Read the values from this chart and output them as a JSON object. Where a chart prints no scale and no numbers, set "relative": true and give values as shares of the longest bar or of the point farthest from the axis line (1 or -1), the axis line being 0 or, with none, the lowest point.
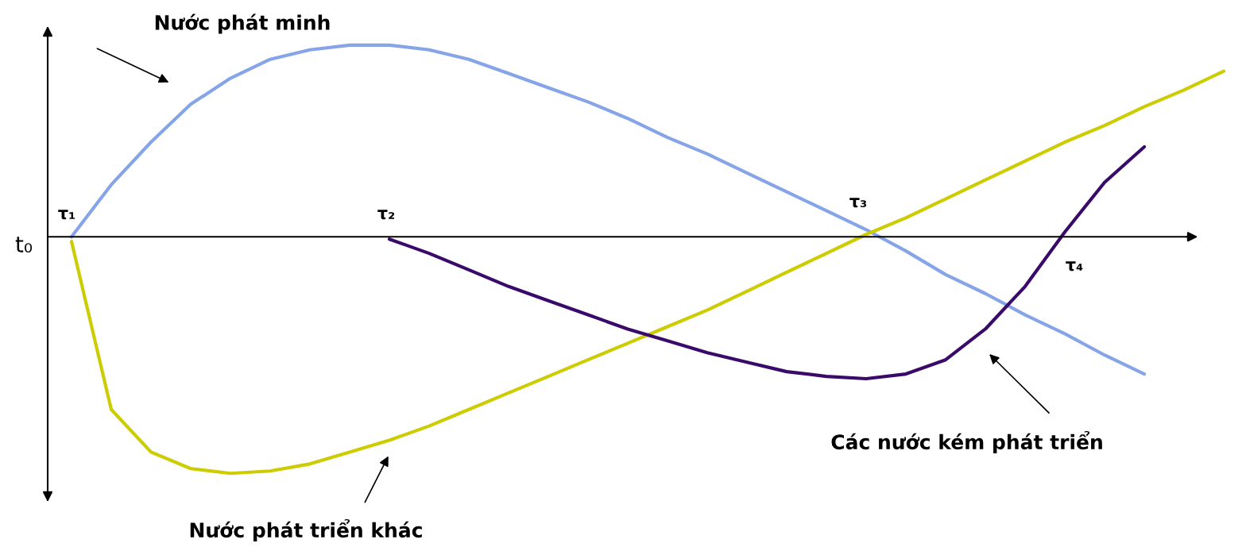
{
  "chart_data": {
    "type": "line",
    "relative": true,
    "categories": [
      null,
      null,
      null,
      null,
      null,
      null,
      null,
      null,
      null,
      null,
      null,
      null,
      null,
      null,
      null,
      null,
      null,
      null,
      null,
      null,
      null,
      null,
      null,
      null,
      null,
      null,
      null,
      null,
      null,
      null
    ],
    "series": [
      {
        "name": "Nước phát minh",
        "color": "#86a4e8",
        "values": [
          0,
          0.22,
          0.4,
          0.56,
          0.67,
          0.75,
          0.79,
          0.81,
          0.81,
          0.79,
          0.75,
          0.69,
          0.63,
          0.57,
          0.5,
          0.42,
          0.35,
          0.27,
          0.19,
          0.11,
          0.03,
          -0.06,
          -0.16,
          -0.24,
          -0.33,
          -0.41,
          -0.5,
          -0.58,
          null,
          null
        ]
      },
      {
        "name": "Nước phát triển khác",
        "color": "#cccc00",
        "values": [
          -0.02,
          -0.73,
          -0.91,
          -0.98,
          -1.0,
          -0.99,
          -0.96,
          -0.91,
          -0.86,
          -0.8,
          -0.73,
          -0.66,
          -0.59,
          -0.52,
          -0.45,
          -0.38,
          -0.31,
          -0.23,
          -0.15,
          -0.07,
          0.01,
          0.08,
          0.16,
          0.24,
          0.32,
          0.4,
          0.47,
          0.55,
          0.62,
          0.7
        ]
      },
      {
        "name": "Các nước kém phát triển",
        "color": "#3a0a6a",
        "values": [
          null,
          null,
          null,
          null,
          null,
          null,
          null,
          null,
          -0.01,
          -0.07,
          -0.14,
          -0.21,
          -0.27,
          -0.33,
          -0.39,
          -0.44,
          -0.49,
          -0.53,
          -0.57,
          -0.59,
          -0.6,
          -0.58,
          -0.52,
          -0.39,
          -0.21,
          0.02,
          0.23,
          0.38,
          null,
          null
        ]
      }
    ],
    "annotations": [
      "t₀",
      "τ₁",
      "τ₂",
      "τ₃",
      "τ₄"
    ]
  }
}
